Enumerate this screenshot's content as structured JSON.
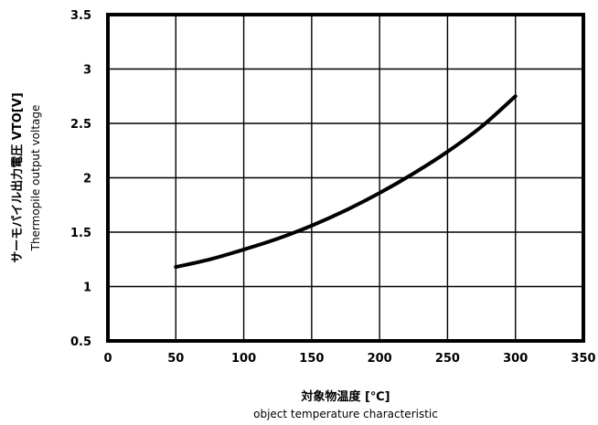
{
  "chart_data": {
    "type": "line",
    "title": "",
    "xlabel": {
      "primary": "対象物温度 [℃]",
      "secondary": "object temperature characteristic"
    },
    "ylabel": {
      "primary": "サーモパイル出力電圧 VTO[V]",
      "secondary": "Thermopile output voltage"
    },
    "xlim": [
      0,
      350
    ],
    "ylim": [
      0.5,
      3.5
    ],
    "x_ticks": [
      "0",
      "50",
      "100",
      "150",
      "200",
      "250",
      "300",
      "350"
    ],
    "y_ticks": [
      "0.5",
      "1",
      "1.5",
      "2",
      "2.5",
      "3",
      "3.5"
    ],
    "grid": true,
    "legend": "none",
    "series": [
      {
        "x": [
          50,
          75,
          100,
          125,
          150,
          175,
          200,
          225,
          250,
          275,
          300
        ],
        "y": [
          1.18,
          1.25,
          1.34,
          1.44,
          1.56,
          1.7,
          1.86,
          2.04,
          2.24,
          2.47,
          2.75
        ]
      }
    ],
    "colors": {
      "line": "#000000",
      "grid": "#000000",
      "frame": "#000000"
    }
  }
}
